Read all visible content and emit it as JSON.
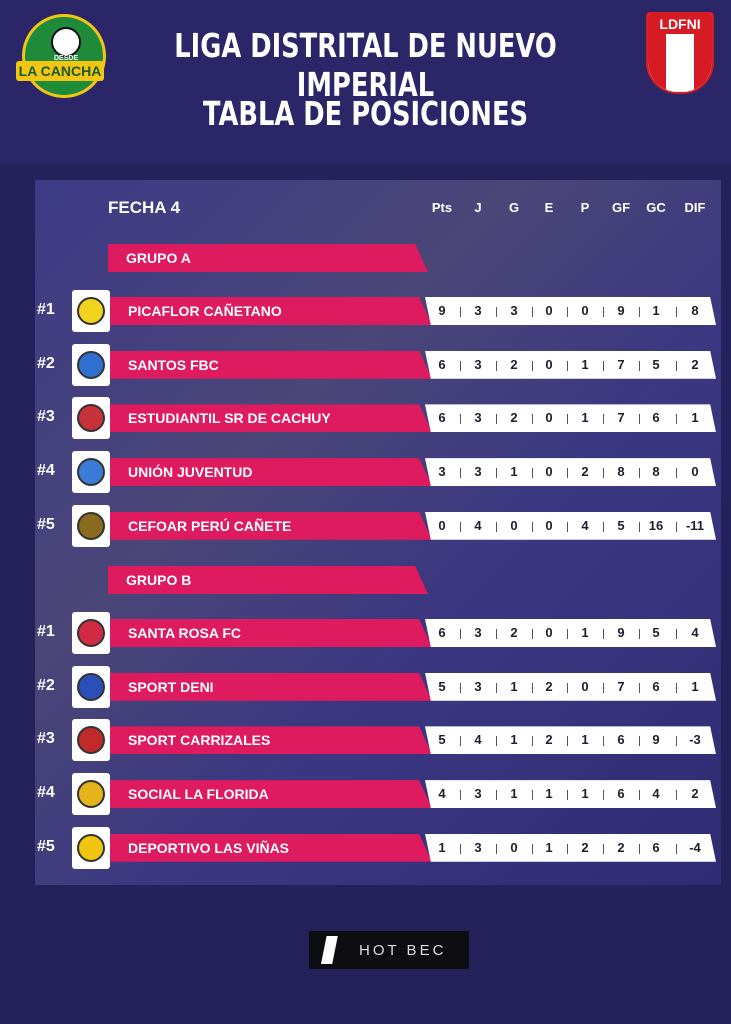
{
  "header": {
    "title": "LIGA DISTRITAL DE NUEVO IMPERIAL",
    "subtitle": "TABLA DE POSICIONES",
    "left_logo": {
      "top": "DESDE",
      "name": "LA CANCHA"
    },
    "right_logo": "LDFNI"
  },
  "table": {
    "round": "FECHA 4",
    "columns": [
      "Pts",
      "J",
      "G",
      "E",
      "P",
      "GF",
      "GC",
      "DIF"
    ],
    "groups": [
      {
        "name": "GRUPO A",
        "rows": [
          {
            "rank": "#1",
            "team": "PICAFLOR CAÑETANO",
            "stats": [
              9,
              3,
              3,
              0,
              0,
              9,
              1,
              8
            ]
          },
          {
            "rank": "#2",
            "team": "SANTOS FBC",
            "stats": [
              6,
              3,
              2,
              0,
              1,
              7,
              5,
              2
            ]
          },
          {
            "rank": "#3",
            "team": "ESTUDIANTIL SR DE CACHUY",
            "stats": [
              6,
              3,
              2,
              0,
              1,
              7,
              6,
              1
            ]
          },
          {
            "rank": "#4",
            "team": "UNIÓN JUVENTUD",
            "stats": [
              3,
              3,
              1,
              0,
              2,
              8,
              8,
              0
            ]
          },
          {
            "rank": "#5",
            "team": "CEFOAR PERÚ CAÑETE",
            "stats": [
              0,
              4,
              0,
              0,
              4,
              5,
              16,
              -11
            ]
          }
        ]
      },
      {
        "name": "GRUPO B",
        "rows": [
          {
            "rank": "#1",
            "team": "SANTA ROSA FC",
            "stats": [
              6,
              3,
              2,
              0,
              1,
              9,
              5,
              4
            ]
          },
          {
            "rank": "#2",
            "team": "SPORT DENI",
            "stats": [
              5,
              3,
              1,
              2,
              0,
              7,
              6,
              1
            ]
          },
          {
            "rank": "#3",
            "team": "SPORT CARRIZALES",
            "stats": [
              5,
              4,
              1,
              2,
              1,
              6,
              9,
              -3
            ]
          },
          {
            "rank": "#4",
            "team": "SOCIAL LA FLORIDA",
            "stats": [
              4,
              3,
              1,
              1,
              1,
              6,
              4,
              2
            ]
          },
          {
            "rank": "#5",
            "team": "DEPORTIVO LAS VIÑAS",
            "stats": [
              1,
              3,
              0,
              1,
              2,
              2,
              6,
              -4
            ]
          }
        ]
      }
    ]
  },
  "footer": {
    "sponsor": "HOT BEC"
  }
}
